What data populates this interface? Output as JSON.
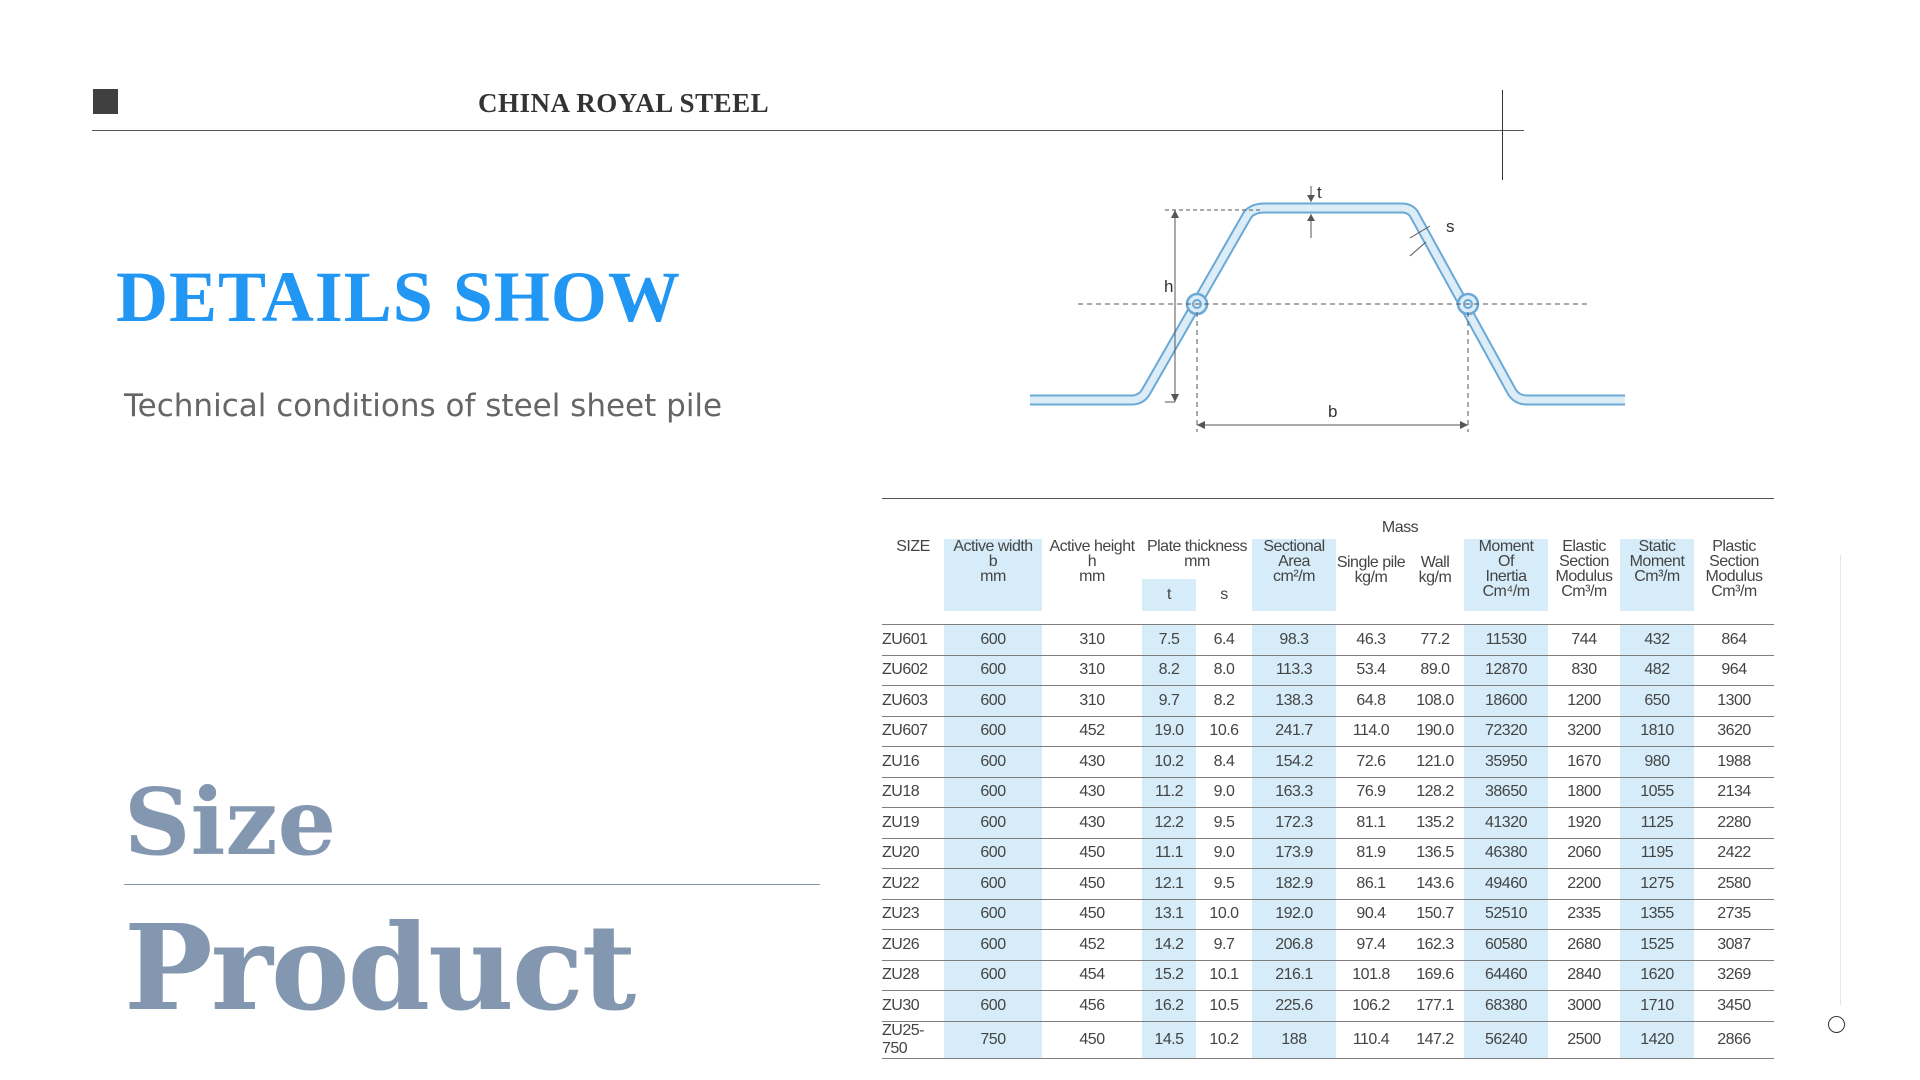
{
  "header": {
    "brand": "CHINA ROYAL STEEL"
  },
  "hero": {
    "title": "DETAILS SHOW",
    "subtitle": "Technical conditions of steel sheet pile",
    "size_label": "Size",
    "product_label": "Product",
    "title_color": "#2196F3",
    "label_color": "#8497b0"
  },
  "diagram": {
    "label_t": "t",
    "label_s": "s",
    "label_h": "h",
    "label_b": "b"
  },
  "table": {
    "headers": {
      "size": "SIZE",
      "active_width": [
        "Active width",
        "b",
        "mm"
      ],
      "active_height": [
        "Active height",
        "h",
        "mm"
      ],
      "plate_thickness": [
        "Plate thickness",
        "mm"
      ],
      "plate_t": "t",
      "plate_s": "s",
      "sectional_area": [
        "Sectional",
        "Area",
        "cm²/m"
      ],
      "mass": "Mass",
      "mass_single": [
        "Single pile",
        "kg/m"
      ],
      "mass_wall": [
        "Wall",
        "kg/m"
      ],
      "moment_inertia": [
        "Moment",
        "Of",
        "Inertia",
        "Cm⁴/m"
      ],
      "elastic_modulus": [
        "Elastic",
        "Section",
        "Modulus",
        "Cm³/m"
      ],
      "static_moment": [
        "Static",
        "Moment",
        "Cm³/m"
      ],
      "plastic_modulus": [
        "Plastic",
        "Section",
        "Modulus",
        "Cm³/m"
      ]
    },
    "rows": [
      [
        "ZU601",
        "600",
        "310",
        "7.5",
        "6.4",
        "98.3",
        "46.3",
        "77.2",
        "11530",
        "744",
        "432",
        "864"
      ],
      [
        "ZU602",
        "600",
        "310",
        "8.2",
        "8.0",
        "113.3",
        "53.4",
        "89.0",
        "12870",
        "830",
        "482",
        "964"
      ],
      [
        "ZU603",
        "600",
        "310",
        "9.7",
        "8.2",
        "138.3",
        "64.8",
        "108.0",
        "18600",
        "1200",
        "650",
        "1300"
      ],
      [
        "ZU607",
        "600",
        "452",
        "19.0",
        "10.6",
        "241.7",
        "114.0",
        "190.0",
        "72320",
        "3200",
        "1810",
        "3620"
      ],
      [
        "ZU16",
        "600",
        "430",
        "10.2",
        "8.4",
        "154.2",
        "72.6",
        "121.0",
        "35950",
        "1670",
        "980",
        "1988"
      ],
      [
        "ZU18",
        "600",
        "430",
        "11.2",
        "9.0",
        "163.3",
        "76.9",
        "128.2",
        "38650",
        "1800",
        "1055",
        "2134"
      ],
      [
        "ZU19",
        "600",
        "430",
        "12.2",
        "9.5",
        "172.3",
        "81.1",
        "135.2",
        "41320",
        "1920",
        "1125",
        "2280"
      ],
      [
        "ZU20",
        "600",
        "450",
        "11.1",
        "9.0",
        "173.9",
        "81.9",
        "136.5",
        "46380",
        "2060",
        "1195",
        "2422"
      ],
      [
        "ZU22",
        "600",
        "450",
        "12.1",
        "9.5",
        "182.9",
        "86.1",
        "143.6",
        "49460",
        "2200",
        "1275",
        "2580"
      ],
      [
        "ZU23",
        "600",
        "450",
        "13.1",
        "10.0",
        "192.0",
        "90.4",
        "150.7",
        "52510",
        "2335",
        "1355",
        "2735"
      ],
      [
        "ZU26",
        "600",
        "452",
        "14.2",
        "9.7",
        "206.8",
        "97.4",
        "162.3",
        "60580",
        "2680",
        "1525",
        "3087"
      ],
      [
        "ZU28",
        "600",
        "454",
        "15.2",
        "10.1",
        "216.1",
        "101.8",
        "169.6",
        "64460",
        "2840",
        "1620",
        "3269"
      ],
      [
        "ZU30",
        "600",
        "456",
        "16.2",
        "10.5",
        "225.6",
        "106.2",
        "177.1",
        "68380",
        "3000",
        "1710",
        "3450"
      ],
      [
        "ZU25-750",
        "750",
        "450",
        "14.5",
        "10.2",
        "188",
        "110.4",
        "147.2",
        "56240",
        "2500",
        "1420",
        "2866"
      ]
    ]
  }
}
